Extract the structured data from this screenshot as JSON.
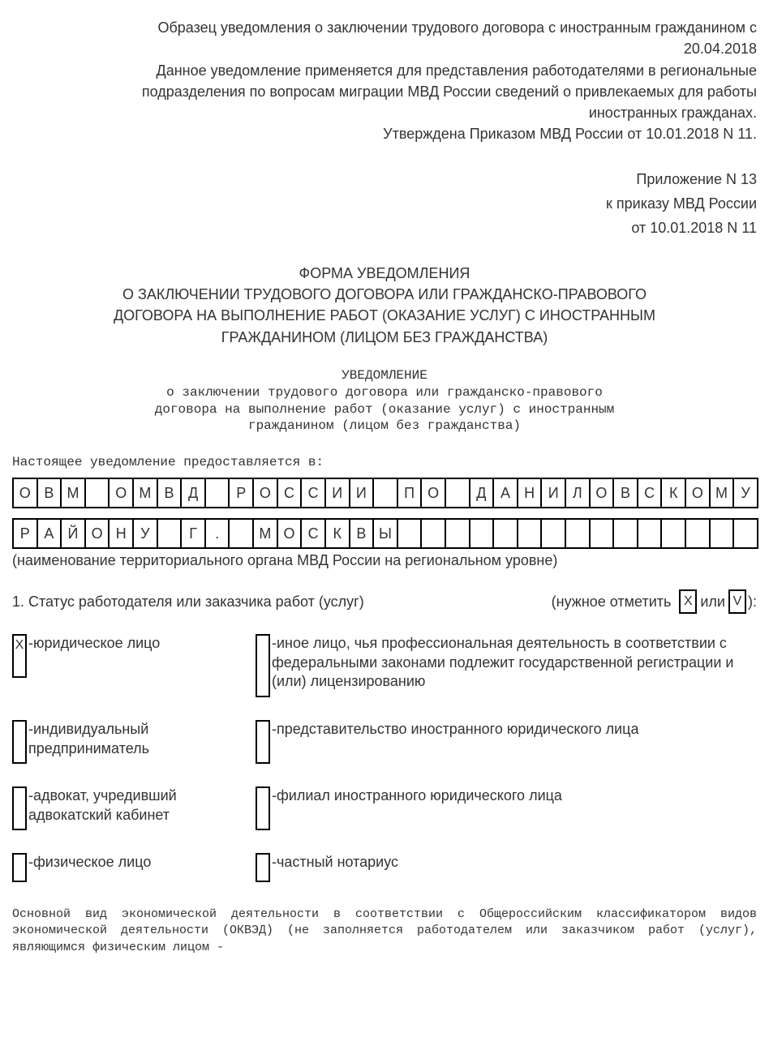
{
  "header": {
    "l1": "Образец уведомления о заключении трудового договора с иностранным гражданином с",
    "l2": "20.04.2018",
    "l3": "Данное уведомление применяется для представления работодателями в региональные",
    "l4": "подразделения по вопросам миграции МВД России сведений о привлекаемых для работы",
    "l5": "иностранных гражданах.",
    "l6": "Утверждена Приказом МВД России от 10.01.2018 N 11."
  },
  "appendix": {
    "l1": "Приложение N 13",
    "l2": "к приказу МВД России",
    "l3": "от 10.01.2018 N 11"
  },
  "form_title": {
    "l1": "ФОРМА УВЕДОМЛЕНИЯ",
    "l2": "О ЗАКЛЮЧЕНИИ ТРУДОВОГО ДОГОВОРА ИЛИ ГРАЖДАНСКО-ПРАВОВОГО",
    "l3": "ДОГОВОРА НА ВЫПОЛНЕНИЕ РАБОТ (ОКАЗАНИЕ УСЛУГ) С ИНОСТРАННЫМ",
    "l4": "ГРАЖДАНИНОМ (ЛИЦОМ БЕЗ ГРАЖДАНСТВА)"
  },
  "notice": {
    "l1": "УВЕДОМЛЕНИЕ",
    "l2": "о заключении трудового договора или гражданско-правового",
    "l3": "договора на выполнение работ (оказание услуг) с иностранным",
    "l4": "гражданином (лицом без гражданства)"
  },
  "intro": "Настоящее уведомление предоставляется в:",
  "cells_row1": [
    "О",
    "В",
    "М",
    "",
    "О",
    "М",
    "В",
    "Д",
    "",
    "Р",
    "О",
    "С",
    "С",
    "И",
    "И",
    "",
    "П",
    "О",
    "",
    "Д",
    "А",
    "Н",
    "И",
    "Л",
    "О",
    "В",
    "С",
    "К",
    "О",
    "М",
    "У"
  ],
  "cells_row2": [
    "Р",
    "А",
    "Й",
    "О",
    "Н",
    "У",
    "",
    "Г",
    ".",
    "",
    "М",
    "О",
    "С",
    "К",
    "В",
    "Ы",
    "",
    "",
    "",
    "",
    "",
    "",
    "",
    "",
    "",
    "",
    "",
    "",
    "",
    "",
    ""
  ],
  "row_caption": "(наименование территориального органа МВД России на региональном уровне)",
  "section1": {
    "left": "1. Статус работодателя или заказчика работ (услуг)",
    "right_prefix": "(нужное отметить",
    "mark_x": "X",
    "or": "или",
    "mark_v": "V",
    "right_suffix": "):"
  },
  "status": {
    "r1c1_mark": "X",
    "r1c1": "юридическое лицо",
    "r1c2": "иное лицо, чья профессиональная деятельность в соответствии с федеральными законами подлежит государственной регистрации и (или) лицензированию",
    "r2c1": "индивидуальный предприниматель",
    "r2c2": "представительство иностранного юридического лица",
    "r3c1": "адвокат, учредивший адвокатский кабинет",
    "r3c2": "филиал иностранного юридического лица",
    "r4c1": "физическое лицо",
    "r4c2": "частный нотариус"
  },
  "footer": "Основной  вид  экономической  деятельности  в соответствии с Общероссийским классификатором  видов  экономической  деятельности (ОКВЭД) (не заполняется работодателем  или  заказчиком работ (услуг), являющимся физическим лицом -"
}
